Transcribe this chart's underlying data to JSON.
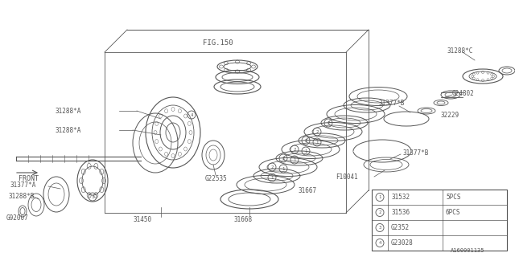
{
  "bg_color": "#ffffff",
  "line_color": "#555555",
  "fig_label": "FIG.150",
  "front_label": "FRONT",
  "doc_number": "A160001135",
  "legend_rows": [
    {
      "num": "1",
      "code": "31532",
      "qty": "5PCS"
    },
    {
      "num": "2",
      "code": "31536",
      "qty": "6PCS"
    },
    {
      "num": "3",
      "code": "G2352",
      "qty": ""
    },
    {
      "num": "4",
      "code": "G23028",
      "qty": ""
    }
  ]
}
